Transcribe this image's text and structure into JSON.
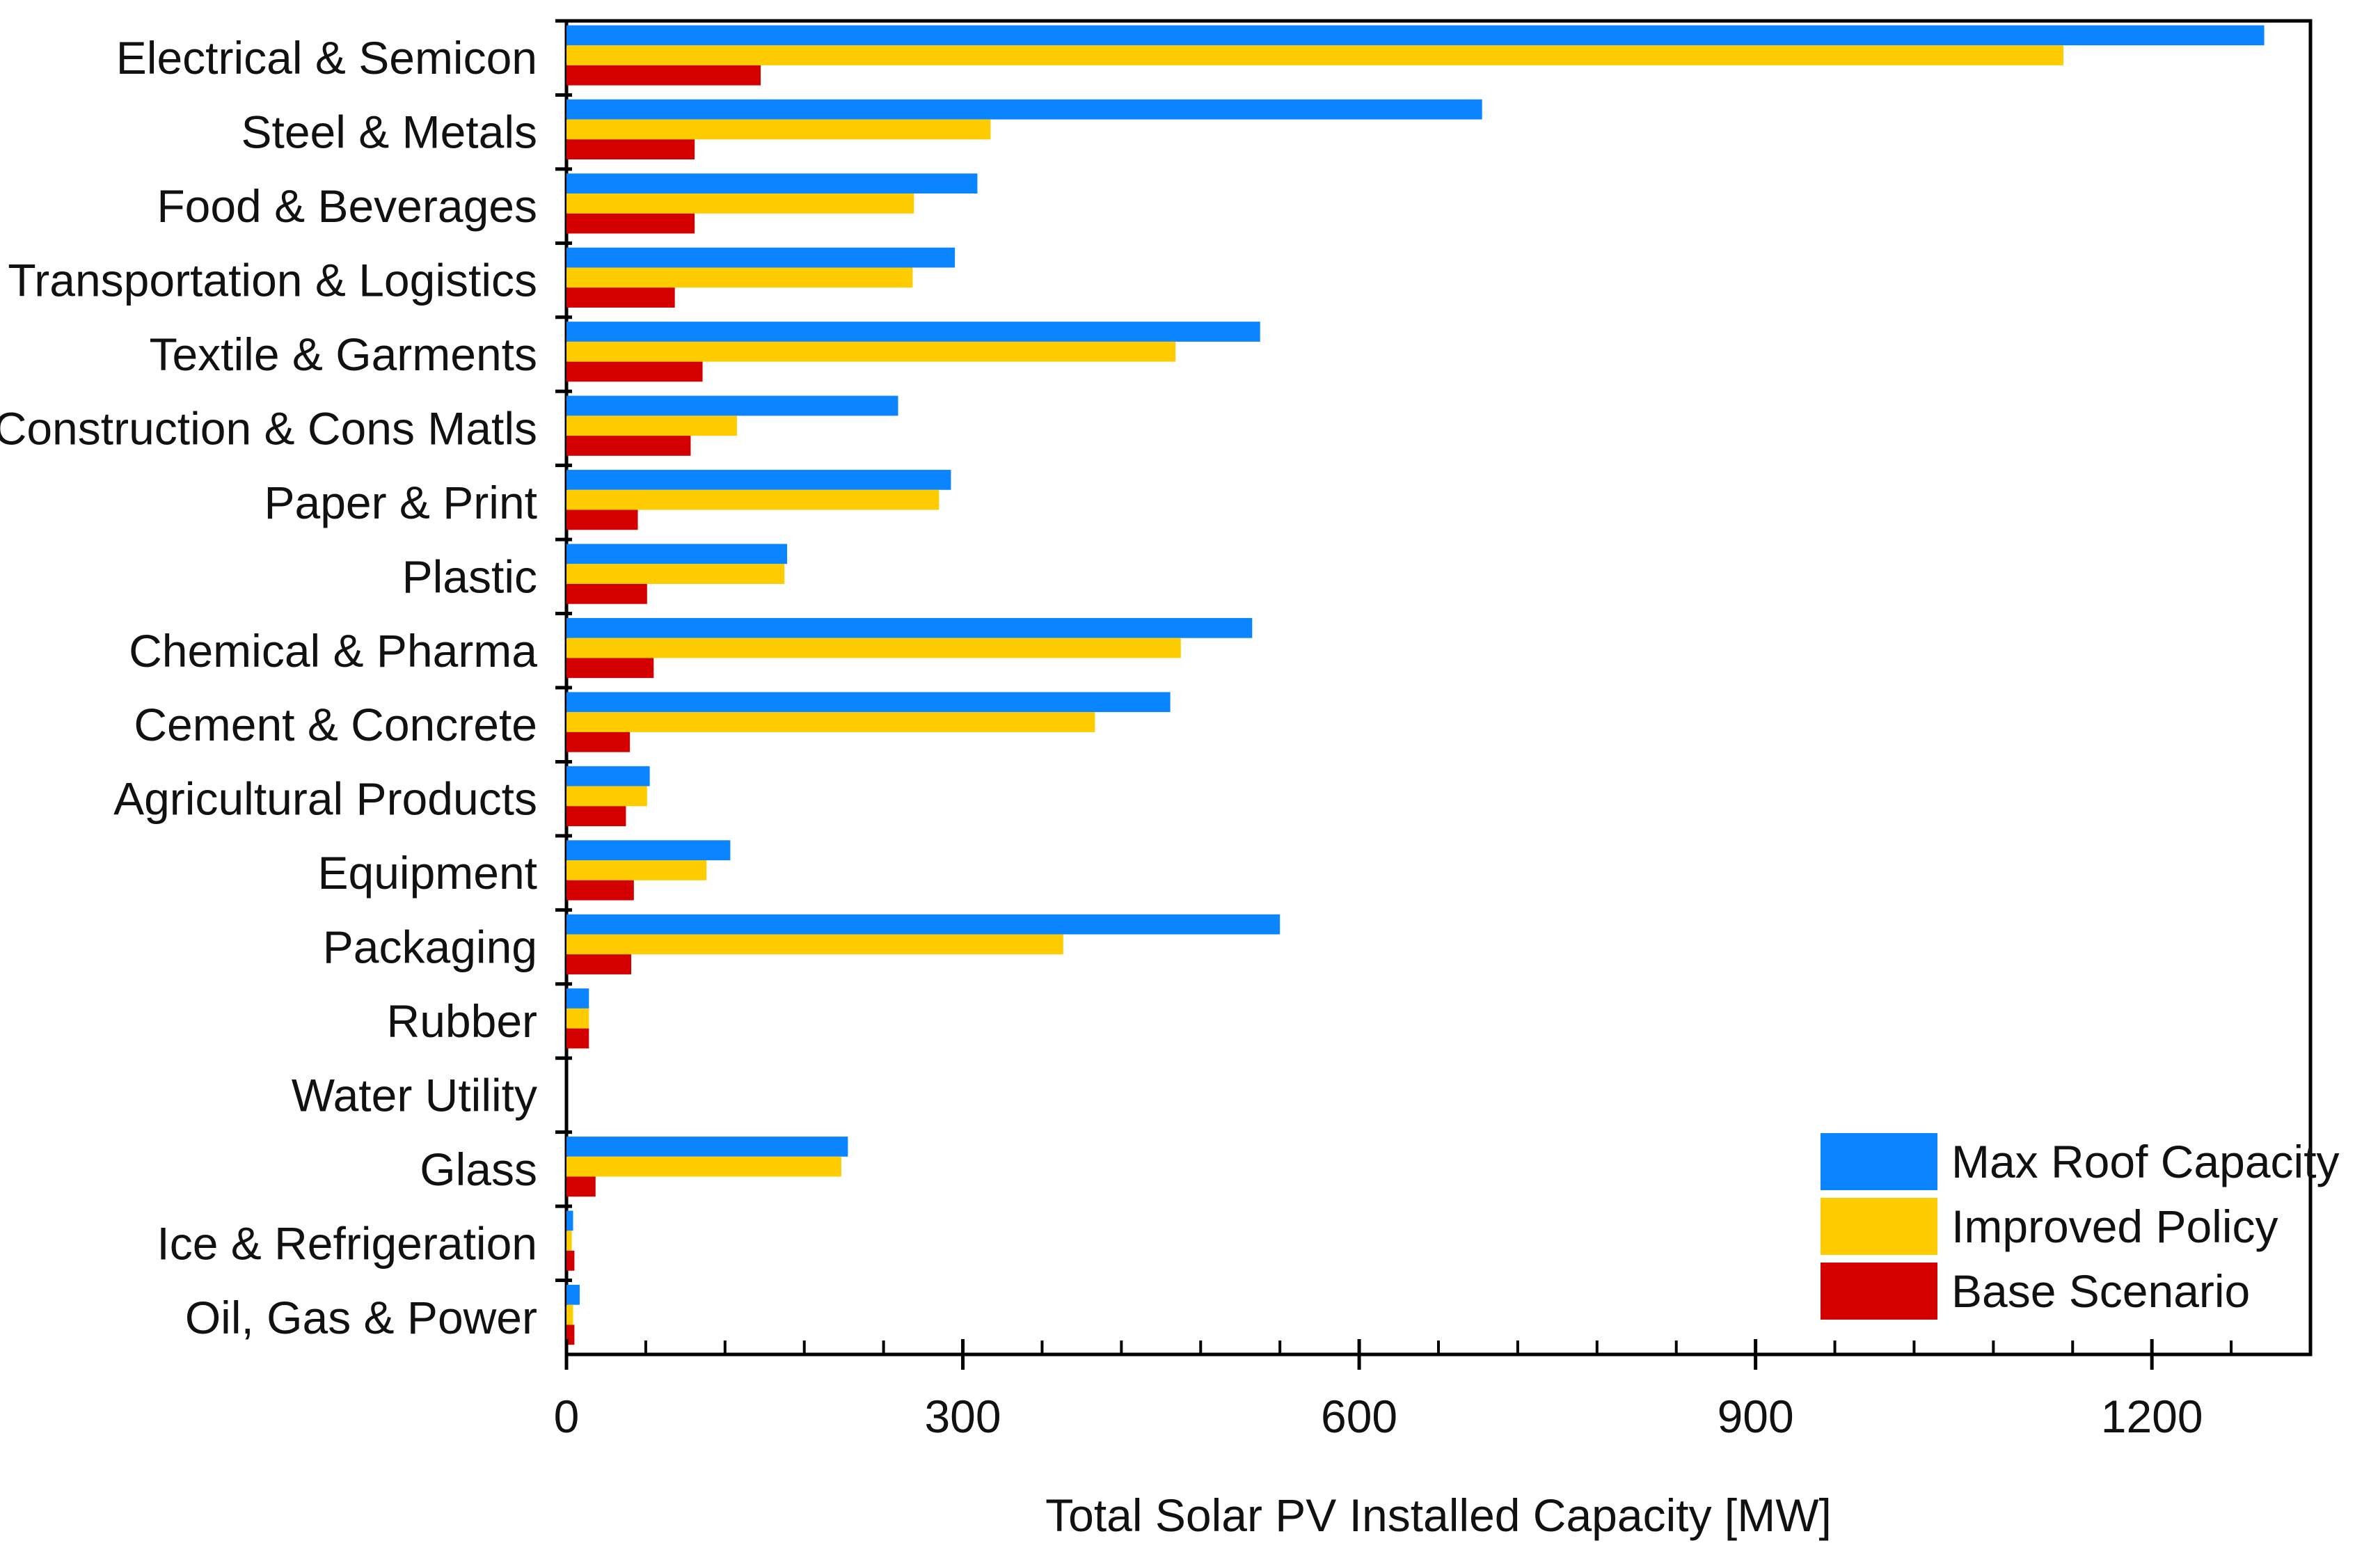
{
  "chart_data": {
    "type": "bar",
    "orientation": "horizontal",
    "title": "",
    "xlabel": "Total Solar PV Installed Capacity [MW]",
    "ylabel": "",
    "xlim": [
      0,
      1320
    ],
    "xticks": [
      0,
      300,
      600,
      900,
      1200
    ],
    "grid": false,
    "legend_position": "bottom-right",
    "categories": [
      "Electrical & Semicon",
      "Steel & Metals",
      "Food & Beverages",
      "Transportation & Logistics",
      "Textile & Garments",
      "Construction & Cons Matls",
      "Paper & Print",
      "Plastic",
      "Chemical & Pharma",
      "Cement & Concrete",
      "Agricultural Products",
      "Equipment",
      "Packaging",
      "Rubber",
      "Water Utility",
      "Glass",
      "Ice & Refrigeration",
      "Oil, Gas & Power"
    ],
    "series": [
      {
        "name": "Max Roof Capacity",
        "color": "#0a84ff",
        "values": [
          1285,
          693,
          311,
          294,
          525,
          251,
          291,
          167,
          519,
          457,
          63,
          124,
          540,
          17,
          0,
          213,
          5,
          10
        ]
      },
      {
        "name": "Improved Policy",
        "color": "#ffcc00",
        "values": [
          1133,
          321,
          263,
          262,
          461,
          129,
          282,
          165,
          465,
          400,
          61,
          106,
          376,
          17,
          0,
          208,
          4,
          5
        ]
      },
      {
        "name": "Base Scenario",
        "color": "#d40000",
        "values": [
          147,
          97,
          97,
          82,
          103,
          94,
          54,
          61,
          66,
          48,
          45,
          51,
          49,
          17,
          0,
          22,
          6,
          6
        ]
      }
    ]
  }
}
